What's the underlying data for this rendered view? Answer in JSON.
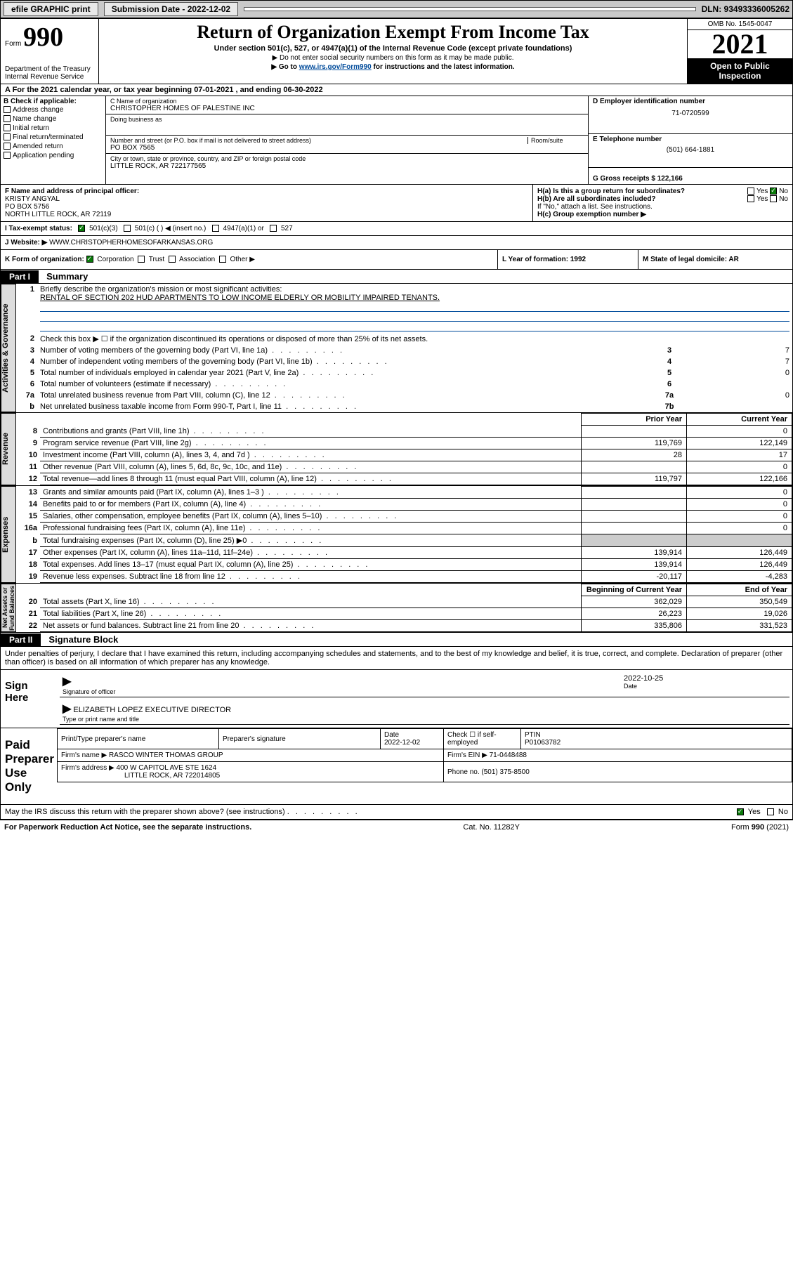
{
  "topbar": {
    "efile": "efile GRAPHIC print",
    "subdate_label": "Submission Date - 2022-12-02",
    "dln": "DLN: 93493336005262"
  },
  "header": {
    "form_prefix": "Form",
    "form_num": "990",
    "dept": "Department of the Treasury\nInternal Revenue Service",
    "title": "Return of Organization Exempt From Income Tax",
    "subtitle": "Under section 501(c), 527, or 4947(a)(1) of the Internal Revenue Code (except private foundations)",
    "note1": "▶ Do not enter social security numbers on this form as it may be made public.",
    "note2_prefix": "▶ Go to ",
    "note2_link": "www.irs.gov/Form990",
    "note2_suffix": " for instructions and the latest information.",
    "omb": "OMB No. 1545-0047",
    "year": "2021",
    "inspect": "Open to Public Inspection"
  },
  "period": {
    "text": "A For the 2021 calendar year, or tax year beginning 07-01-2021   , and ending 06-30-2022"
  },
  "sectionB": {
    "heading": "B Check if applicable:",
    "opts": [
      "Address change",
      "Name change",
      "Initial return",
      "Final return/terminated",
      "Amended return",
      "Application pending"
    ]
  },
  "sectionC": {
    "name_label": "C Name of organization",
    "name": "CHRISTOPHER HOMES OF PALESTINE INC",
    "dba_label": "Doing business as",
    "dba": "",
    "addr_label": "Number and street (or P.O. box if mail is not delivered to street address)",
    "room_label": "Room/suite",
    "addr": "PO BOX 7565",
    "city_label": "City or town, state or province, country, and ZIP or foreign postal code",
    "city": "LITTLE ROCK, AR  722177565"
  },
  "sectionD": {
    "label": "D Employer identification number",
    "value": "71-0720599"
  },
  "sectionE": {
    "label": "E Telephone number",
    "value": "(501) 664-1881"
  },
  "sectionG": {
    "label": "G Gross receipts $ 122,166"
  },
  "sectionF": {
    "label": "F Name and address of principal officer:",
    "name": "KRISTY ANGYAL",
    "addr1": "PO BOX 5756",
    "addr2": "NORTH LITTLE ROCK, AR  72119"
  },
  "sectionH": {
    "ha": "H(a)  Is this a group return for subordinates?",
    "hb": "H(b)  Are all subordinates included?",
    "hb_note": "If \"No,\" attach a list. See instructions.",
    "hc": "H(c)  Group exemption number ▶",
    "yes": "Yes",
    "no": "No"
  },
  "sectionI": {
    "label": "I    Tax-exempt status:",
    "o1": "501(c)(3)",
    "o2": "501(c) (  ) ◀ (insert no.)",
    "o3": "4947(a)(1) or",
    "o4": "527"
  },
  "sectionJ": {
    "label": "J   Website: ▶",
    "value": "WWW.CHRISTOPHERHOMESOFARKANSAS.ORG"
  },
  "sectionK": {
    "label": "K Form of organization:",
    "o1": "Corporation",
    "o2": "Trust",
    "o3": "Association",
    "o4": "Other ▶"
  },
  "sectionL": {
    "label": "L Year of formation: 1992"
  },
  "sectionM": {
    "label": "M State of legal domicile: AR"
  },
  "parts": {
    "p1": "Part I",
    "p1_title": "Summary",
    "p2": "Part II",
    "p2_title": "Signature Block"
  },
  "side_labels": {
    "ag": "Activities & Governance",
    "rev": "Revenue",
    "exp": "Expenses",
    "na": "Net Assets or\nFund Balances"
  },
  "summary": {
    "l1_label": "Briefly describe the organization's mission or most significant activities:",
    "l1_text": "RENTAL OF SECTION 202 HUD APARTMENTS TO LOW INCOME ELDERLY OR MOBILITY IMPAIRED TENANTS.",
    "l2": "Check this box ▶ ☐  if the organization discontinued its operations or disposed of more than 25% of its net assets.",
    "rows_ag": [
      {
        "n": "3",
        "d": "Number of voting members of the governing body (Part VI, line 1a)",
        "box": "3",
        "v": "7"
      },
      {
        "n": "4",
        "d": "Number of independent voting members of the governing body (Part VI, line 1b)",
        "box": "4",
        "v": "7"
      },
      {
        "n": "5",
        "d": "Total number of individuals employed in calendar year 2021 (Part V, line 2a)",
        "box": "5",
        "v": "0"
      },
      {
        "n": "6",
        "d": "Total number of volunteers (estimate if necessary)",
        "box": "6",
        "v": ""
      },
      {
        "n": "7a",
        "d": "Total unrelated business revenue from Part VIII, column (C), line 12",
        "box": "7a",
        "v": "0"
      },
      {
        "n": "b",
        "d": "Net unrelated business taxable income from Form 990-T, Part I, line 11",
        "box": "7b",
        "v": ""
      }
    ],
    "col_hdr_prior": "Prior Year",
    "col_hdr_curr": "Current Year",
    "rows_rev": [
      {
        "n": "8",
        "d": "Contributions and grants (Part VIII, line 1h)",
        "p": "",
        "c": "0"
      },
      {
        "n": "9",
        "d": "Program service revenue (Part VIII, line 2g)",
        "p": "119,769",
        "c": "122,149"
      },
      {
        "n": "10",
        "d": "Investment income (Part VIII, column (A), lines 3, 4, and 7d )",
        "p": "28",
        "c": "17"
      },
      {
        "n": "11",
        "d": "Other revenue (Part VIII, column (A), lines 5, 6d, 8c, 9c, 10c, and 11e)",
        "p": "",
        "c": "0"
      },
      {
        "n": "12",
        "d": "Total revenue—add lines 8 through 11 (must equal Part VIII, column (A), line 12)",
        "p": "119,797",
        "c": "122,166"
      }
    ],
    "rows_exp": [
      {
        "n": "13",
        "d": "Grants and similar amounts paid (Part IX, column (A), lines 1–3 )",
        "p": "",
        "c": "0"
      },
      {
        "n": "14",
        "d": "Benefits paid to or for members (Part IX, column (A), line 4)",
        "p": "",
        "c": "0"
      },
      {
        "n": "15",
        "d": "Salaries, other compensation, employee benefits (Part IX, column (A), lines 5–10)",
        "p": "",
        "c": "0"
      },
      {
        "n": "16a",
        "d": "Professional fundraising fees (Part IX, column (A), line 11e)",
        "p": "",
        "c": "0"
      },
      {
        "n": "b",
        "d": "Total fundraising expenses (Part IX, column (D), line 25) ▶0",
        "p": "grey",
        "c": "grey"
      },
      {
        "n": "17",
        "d": "Other expenses (Part IX, column (A), lines 11a–11d, 11f–24e)",
        "p": "139,914",
        "c": "126,449"
      },
      {
        "n": "18",
        "d": "Total expenses. Add lines 13–17 (must equal Part IX, column (A), line 25)",
        "p": "139,914",
        "c": "126,449"
      },
      {
        "n": "19",
        "d": "Revenue less expenses. Subtract line 18 from line 12",
        "p": "-20,117",
        "c": "-4,283"
      }
    ],
    "col_hdr_begin": "Beginning of Current Year",
    "col_hdr_end": "End of Year",
    "rows_na": [
      {
        "n": "20",
        "d": "Total assets (Part X, line 16)",
        "p": "362,029",
        "c": "350,549"
      },
      {
        "n": "21",
        "d": "Total liabilities (Part X, line 26)",
        "p": "26,223",
        "c": "19,026"
      },
      {
        "n": "22",
        "d": "Net assets or fund balances. Subtract line 21 from line 20",
        "p": "335,806",
        "c": "331,523"
      }
    ]
  },
  "sig": {
    "declaration": "Under penalties of perjury, I declare that I have examined this return, including accompanying schedules and statements, and to the best of my knowledge and belief, it is true, correct, and complete. Declaration of preparer (other than officer) is based on all information of which preparer has any knowledge.",
    "sign_here": "Sign Here",
    "sig_officer": "Signature of officer",
    "date": "Date",
    "date_val": "2022-10-25",
    "name_title": "ELIZABETH LOPEZ  EXECUTIVE DIRECTOR",
    "name_label": "Type or print name and title",
    "paid": "Paid Preparer Use Only",
    "prep_name_label": "Print/Type preparer's name",
    "prep_sig_label": "Preparer's signature",
    "prep_date_label": "Date",
    "prep_date": "2022-12-02",
    "check_self": "Check ☐ if self-employed",
    "ptin_label": "PTIN",
    "ptin": "P01063782",
    "firm_name_label": "Firm's name    ▶",
    "firm_name": "RASCO WINTER THOMAS GROUP",
    "firm_ein_label": "Firm's EIN ▶",
    "firm_ein": "71-0448488",
    "firm_addr_label": "Firm's address ▶",
    "firm_addr1": "400 W CAPITOL AVE STE 1624",
    "firm_addr2": "LITTLE ROCK, AR  722014805",
    "phone_label": "Phone no.",
    "phone": "(501) 375-8500",
    "discuss": "May the IRS discuss this return with the preparer shown above? (see instructions)"
  },
  "footer": {
    "left": "For Paperwork Reduction Act Notice, see the separate instructions.",
    "mid": "Cat. No. 11282Y",
    "right": "Form 990 (2021)"
  }
}
